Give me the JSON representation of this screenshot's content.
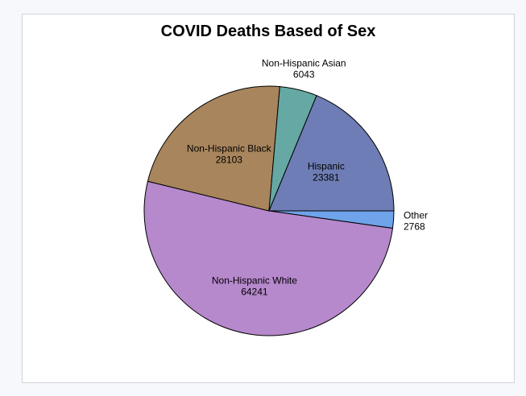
{
  "chart_data": {
    "type": "pie",
    "title": "COVID Deaths Based of Sex",
    "slices": [
      {
        "label": "Other",
        "value": 2768,
        "color": "#6fa3ea"
      },
      {
        "label": "Non-Hispanic White",
        "value": 64241,
        "color": "#b688cc"
      },
      {
        "label": "Non-Hispanic Black",
        "value": 28103,
        "color": "#a8855c"
      },
      {
        "label": "Non-Hispanic Asian",
        "value": 6043,
        "color": "#66a8a3"
      },
      {
        "label": "Hispanic",
        "value": 23381,
        "color": "#6e7db5"
      }
    ]
  }
}
